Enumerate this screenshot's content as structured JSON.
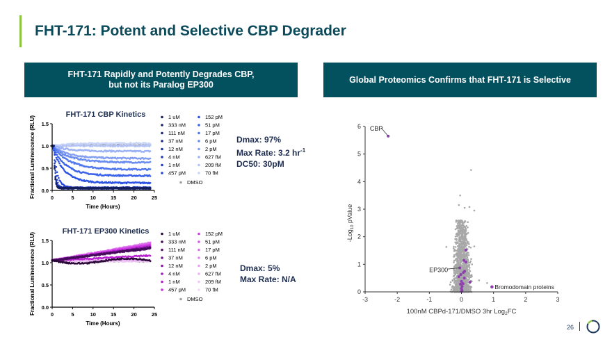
{
  "slide": {
    "title": "FHT-171: Potent and Selective CBP Degrader",
    "page_number": "26",
    "banner_left": "FHT-171 Rapidly and Potently Degrades CBP, but not its Paralog EP300",
    "banner_right": "Global Proteomics Confirms that FHT-171 is Selective",
    "colors": {
      "teal": "#03505f",
      "accent": "#8cc63f",
      "navy": "#1e3a5f"
    }
  },
  "stats": {
    "cbp": {
      "dmax": "Dmax: 97%",
      "max_rate": "Max Rate: 3.2 hr",
      "max_rate_sup": "-1",
      "dc50": "DC50: 30pM"
    },
    "ep300": {
      "dmax": "Dmax: 5%",
      "max_rate": "Max Rate: N/A"
    }
  },
  "chart_data": [
    {
      "type": "scatter",
      "title": "FHT-171 CBP Kinetics",
      "xlabel": "Time (Hours)",
      "ylabel": "Fractional  Luminescence (RLU)",
      "xlim": [
        0,
        25
      ],
      "ylim": [
        0,
        1.5
      ],
      "xticks": [
        "0",
        "5",
        "10",
        "15",
        "20",
        "25"
      ],
      "yticks": [
        "0.0",
        "0.5",
        "1.0",
        "1.5"
      ],
      "series": [
        {
          "name": "1 uM",
          "color": "#141e5a",
          "plateau": 0.05,
          "rate": 3.2
        },
        {
          "name": "333 nM",
          "color": "#16226a",
          "plateau": 0.05,
          "rate": 3.2
        },
        {
          "name": "111 nM",
          "color": "#1a287a",
          "plateau": 0.05,
          "rate": 3.0
        },
        {
          "name": "37 nM",
          "color": "#1c2e8c",
          "plateau": 0.05,
          "rate": 2.8
        },
        {
          "name": "12 nM",
          "color": "#1e34a0",
          "plateau": 0.05,
          "rate": 2.6
        },
        {
          "name": "4 nM",
          "color": "#1f3ab4",
          "plateau": 0.05,
          "rate": 2.2
        },
        {
          "name": "1 nM",
          "color": "#2040c8",
          "plateau": 0.06,
          "rate": 1.8
        },
        {
          "name": "457 pM",
          "color": "#2446dc",
          "plateau": 0.06,
          "rate": 1.0
        },
        {
          "name": "152 pM",
          "color": "#2a52e6",
          "plateau": 0.17,
          "rate": 0.3
        },
        {
          "name": "51 pM",
          "color": "#3a62ea",
          "plateau": 0.33,
          "rate": 0.25
        },
        {
          "name": "17 pM",
          "color": "#5278ee",
          "plateau": 0.47,
          "rate": 0.2
        },
        {
          "name": "6 pM",
          "color": "#6a8cf0",
          "plateau": 0.63,
          "rate": 0.2
        },
        {
          "name": "2 pM",
          "color": "#849ff2",
          "plateau": 0.72,
          "rate": 0.2
        },
        {
          "name": "627 fM",
          "color": "#9cb2f4",
          "plateau": 0.88,
          "rate": 0.2
        },
        {
          "name": "209 fM",
          "color": "#b4c4f6",
          "plateau": 1.0,
          "rate": 0.2
        },
        {
          "name": "70 fM",
          "color": "#cad6f8",
          "plateau": 1.06,
          "rate": 0.2
        },
        {
          "name": "DMSO",
          "color": "#a0a0a0",
          "plateau": 1.02,
          "rate": 0.2
        }
      ]
    },
    {
      "type": "scatter",
      "title": "FHT-171 EP300 Kinetics",
      "xlabel": "Time (Hours)",
      "ylabel": "Fractional  Luminescence (RLU)",
      "xlim": [
        0,
        25
      ],
      "ylim": [
        0,
        1.5
      ],
      "xticks": [
        "0",
        "5",
        "10",
        "15",
        "20",
        "25"
      ],
      "yticks": [
        "0.0",
        "0.5",
        "1.0",
        "1.5"
      ],
      "series": [
        {
          "name": "1 uM",
          "color": "#2a0838",
          "plateau": 1.03,
          "rate": 0.05
        },
        {
          "name": "333 nM",
          "color": "#420c58",
          "plateau": 1.33,
          "rate": 0.05
        },
        {
          "name": "111 nM",
          "color": "#5a1070",
          "plateau": 1.32,
          "rate": 0.05
        },
        {
          "name": "37 nM",
          "color": "#72148a",
          "plateau": 1.34,
          "rate": 0.05
        },
        {
          "name": "12 nM",
          "color": "#8a18a4",
          "plateau": 1.35,
          "rate": 0.05
        },
        {
          "name": "4 nM",
          "color": "#a21cbc",
          "plateau": 1.36,
          "rate": 0.05
        },
        {
          "name": "1 nM",
          "color": "#b820d0",
          "plateau": 1.16,
          "rate": 0.05
        },
        {
          "name": "457 pM",
          "color": "#c830e0",
          "plateau": 1.38,
          "rate": 0.05
        },
        {
          "name": "152 pM",
          "color": "#d040e6",
          "plateau": 1.4,
          "rate": 0.05
        },
        {
          "name": "51 pM",
          "color": "#d658e8",
          "plateau": 1.42,
          "rate": 0.05
        },
        {
          "name": "17 pM",
          "color": "#dc70ec",
          "plateau": 1.44,
          "rate": 0.05
        },
        {
          "name": "6 pM",
          "color": "#e288ee",
          "plateau": 1.45,
          "rate": 0.05
        },
        {
          "name": "2 pM",
          "color": "#e8a0f2",
          "plateau": 1.4,
          "rate": 0.05
        },
        {
          "name": "627 fM",
          "color": "#ecb4f4",
          "plateau": 1.06,
          "rate": 0.05
        },
        {
          "name": "209 fM",
          "color": "#f0c6f6",
          "plateau": 1.04,
          "rate": 0.05
        },
        {
          "name": "70 fM",
          "color": "#f4d8f8",
          "plateau": 1.03,
          "rate": 0.05
        },
        {
          "name": "DMSO",
          "color": "#a0a0a0",
          "plateau": 1.03,
          "rate": 0.05
        }
      ]
    },
    {
      "type": "scatter",
      "title": "",
      "xlabel": "100nM CBPd-171/DMSO 3hr Log",
      "xlabel_sub": "2",
      "xlabel_end": "FC",
      "ylabel": "-Log",
      "ylabel_sub": "10",
      "ylabel_end": " pValue",
      "xlim": [
        -3,
        3
      ],
      "ylim": [
        0,
        6
      ],
      "xticks": [
        "-3",
        "-2",
        "-1",
        "0",
        "1",
        "2",
        "3"
      ],
      "yticks": [
        "0",
        "1",
        "2",
        "3",
        "4",
        "5",
        "6"
      ],
      "background_color": "#a8a8a8",
      "highlight_color": "#8e3fb0",
      "labels": {
        "cbp": "CBP",
        "ep300": "EP300",
        "legend": "Bromodomain proteins"
      },
      "cbp_point": [
        -2.28,
        5.65
      ],
      "ep300_point": [
        -0.05,
        0.87
      ],
      "bromodomain_points": [
        [
          0.14,
          1.52
        ],
        [
          0.08,
          1.14
        ],
        [
          0.14,
          1.08
        ],
        [
          0.1,
          0.75
        ],
        [
          0.06,
          0.7
        ],
        [
          -0.02,
          0.63
        ],
        [
          -0.08,
          0.55
        ],
        [
          0.09,
          0.5
        ],
        [
          0.27,
          0.36
        ],
        [
          0.0,
          0.38
        ],
        [
          0.05,
          0.3
        ],
        [
          -0.03,
          0.28
        ],
        [
          0.02,
          0.2
        ],
        [
          0.0,
          0.12
        ],
        [
          0.02,
          0.05
        ],
        [
          0.0,
          0.02
        ]
      ],
      "outlier_points": [
        [
          0.3,
          4.42
        ],
        [
          -0.04,
          3.5
        ],
        [
          0.25,
          3.08
        ],
        [
          0.1,
          3.05
        ],
        [
          -0.08,
          3.15
        ],
        [
          0.4,
          2.95
        ],
        [
          0.55,
          0.42
        ],
        [
          0.8,
          0.32
        ],
        [
          -0.47,
          1.63
        ],
        [
          0.4,
          1.65
        ]
      ]
    }
  ]
}
